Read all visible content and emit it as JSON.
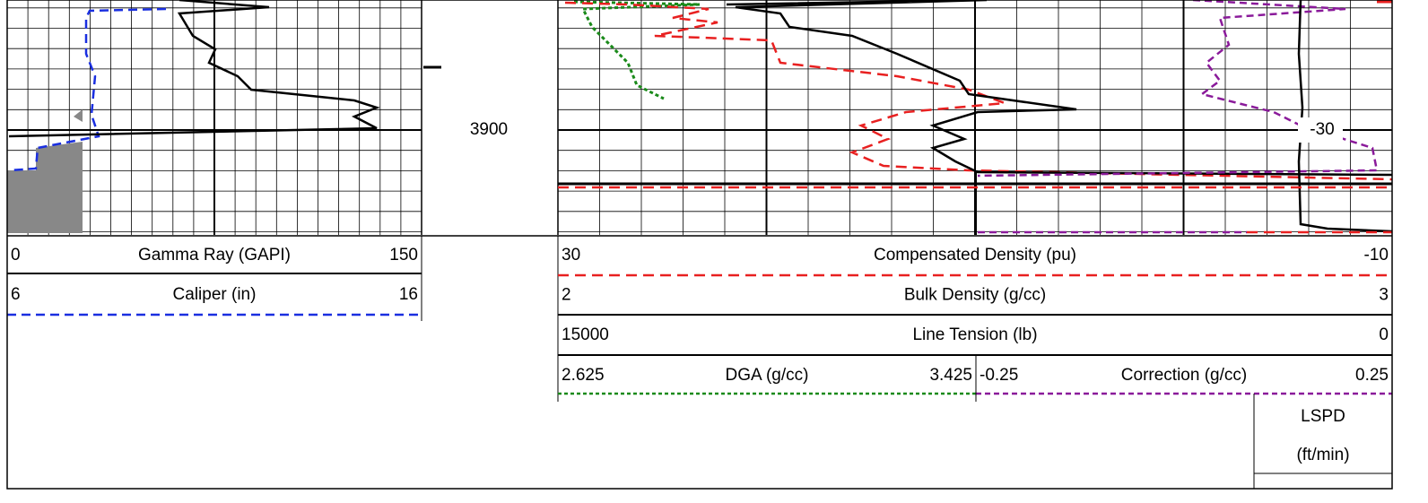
{
  "depth_label": "3900",
  "annotation": "-30",
  "tracks": [
    {
      "scales": [
        {
          "min": "0",
          "name": "Gamma Ray (GAPI)",
          "max": "150"
        },
        {
          "min": "6",
          "name": "Caliper (in)",
          "max": "16"
        }
      ]
    },
    {
      "scales": [
        {
          "min": "30",
          "name": "Compensated Density (pu)",
          "max": "-10"
        },
        {
          "min": "2",
          "name": "Bulk Density (g/cc)",
          "max": "3"
        },
        {
          "min": "15000",
          "name": "Line Tension (lb)",
          "max": "0"
        }
      ],
      "split_scales": [
        {
          "min": "2.625",
          "name": "DGA (g/cc)",
          "max": "3.425"
        },
        {
          "min": "-0.25",
          "name": "Correction (g/cc)",
          "max": "0.25"
        }
      ]
    }
  ],
  "speed_header": {
    "name": "LSPD",
    "unit": "(ft/min)"
  }
}
